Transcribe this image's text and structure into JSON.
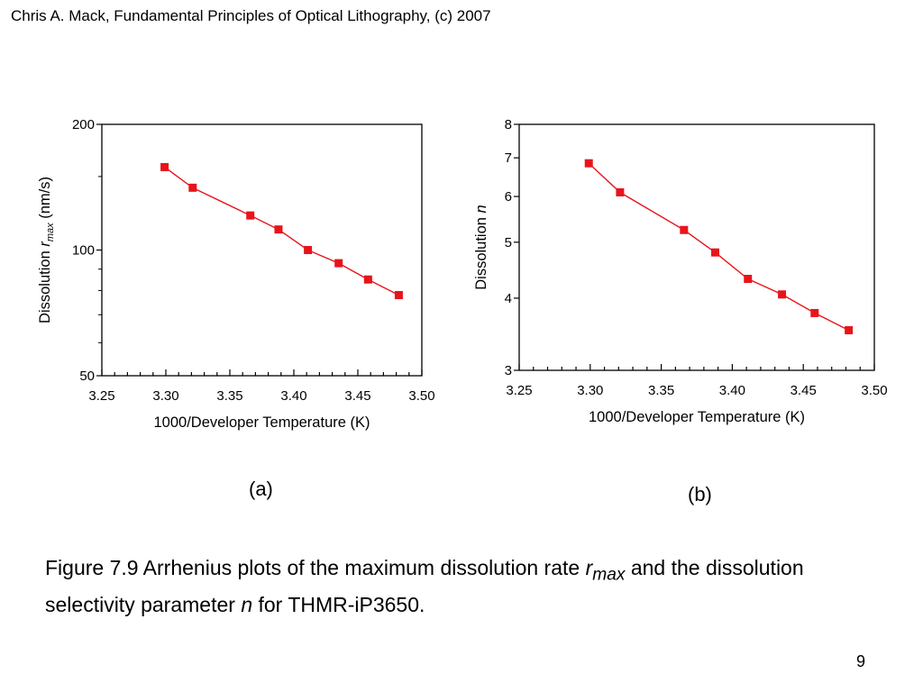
{
  "header": {
    "credit": "Chris A. Mack, Fundamental Principles of Optical Lithography, (c) 2007"
  },
  "chart_data": [
    {
      "type": "line",
      "panel_label": "(a)",
      "xlabel": "1000/Developer Temperature (K)",
      "ylabel_prefix": "Dissolution ",
      "ylabel_var": "r",
      "ylabel_sub": "max",
      "ylabel_suffix": " (nm/s)",
      "xlim": [
        3.25,
        3.5
      ],
      "ylim": [
        50,
        200
      ],
      "yscale": "log",
      "x_ticks": [
        "3.25",
        "3.30",
        "3.35",
        "3.40",
        "3.45",
        "3.50"
      ],
      "y_ticks": [
        "50",
        "100",
        "200"
      ],
      "grid": false,
      "marker_color": "#e8141b",
      "series": [
        {
          "x": [
            3.299,
            3.321,
            3.366,
            3.388,
            3.411,
            3.435,
            3.458,
            3.482
          ],
          "y": [
            158,
            141,
            121,
            112,
            100,
            93,
            85,
            78
          ]
        }
      ]
    },
    {
      "type": "line",
      "panel_label": "(b)",
      "xlabel": "1000/Developer Temperature (K)",
      "ylabel_prefix": "Dissolution ",
      "ylabel_var": "n",
      "xlim": [
        3.25,
        3.5
      ],
      "ylim": [
        3,
        8
      ],
      "yscale": "log",
      "x_ticks": [
        "3.25",
        "3.30",
        "3.35",
        "3.40",
        "3.45",
        "3.50"
      ],
      "y_ticks": [
        "3",
        "4",
        "5",
        "6",
        "7",
        "8"
      ],
      "grid": false,
      "marker_color": "#e8141b",
      "series": [
        {
          "x": [
            3.299,
            3.321,
            3.366,
            3.388,
            3.411,
            3.435,
            3.458,
            3.482
          ],
          "y": [
            6.85,
            6.1,
            5.25,
            4.8,
            4.32,
            4.06,
            3.77,
            3.52
          ]
        }
      ]
    }
  ],
  "caption": {
    "part1": "Figure 7.9  Arrhenius plots of the maximum dissolution rate ",
    "var1": "r",
    "sub1": "max",
    "part2": " and the dissolution selectivity parameter ",
    "var2": "n",
    "part3": " for THMR-iP3650."
  },
  "slide_number": "9"
}
